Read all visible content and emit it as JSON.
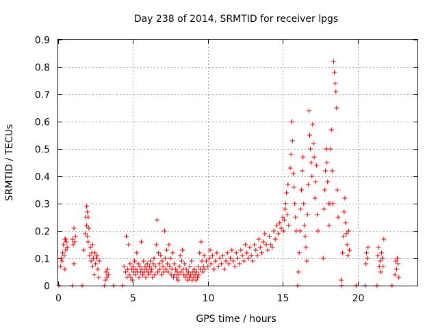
{
  "chart_data": {
    "type": "scatter",
    "title": "Day 238 of 2014, SRMTID for receiver lpgs",
    "xlabel": "GPS time / hours",
    "ylabel": "SRMTID / TECUs",
    "xlim": [
      0,
      24
    ],
    "ylim": [
      0,
      0.9
    ],
    "xticks": [
      0,
      5,
      10,
      15,
      20
    ],
    "yticks": [
      0,
      0.1,
      0.2,
      0.3,
      0.4,
      0.5,
      0.6,
      0.7,
      0.8,
      0.9
    ],
    "xtick_labels": [
      "0",
      "5",
      "10",
      "15",
      "20"
    ],
    "ytick_labels": [
      "0",
      "0.1",
      "0.2",
      "0.3",
      "0.4",
      "0.5",
      "0.6",
      "0.7",
      "0.8",
      "0.9"
    ],
    "grid": true,
    "marker": "plus",
    "color": "#e00000",
    "series": [
      {
        "name": "SRMTID",
        "points": [
          [
            0.05,
            0.0
          ],
          [
            0.15,
            0.07
          ],
          [
            0.2,
            0.1
          ],
          [
            0.25,
            0.09
          ],
          [
            0.3,
            0.12
          ],
          [
            0.35,
            0.15
          ],
          [
            0.4,
            0.11
          ],
          [
            0.45,
            0.17
          ],
          [
            0.5,
            0.13
          ],
          [
            0.55,
            0.16
          ],
          [
            0.6,
            0.14
          ],
          [
            0.45,
            0.06
          ],
          [
            0.5,
            0.17
          ],
          [
            0.95,
            0.0
          ],
          [
            0.95,
            0.17
          ],
          [
            1.0,
            0.15
          ],
          [
            1.05,
            0.21
          ],
          [
            1.1,
            0.16
          ],
          [
            1.15,
            0.18
          ],
          [
            1.05,
            0.08
          ],
          [
            1.6,
            0.0
          ],
          [
            1.7,
            0.13
          ],
          [
            1.8,
            0.19
          ],
          [
            1.85,
            0.25
          ],
          [
            1.9,
            0.29
          ],
          [
            1.9,
            0.22
          ],
          [
            1.95,
            0.18
          ],
          [
            2.0,
            0.16
          ],
          [
            2.05,
            0.21
          ],
          [
            2.1,
            0.11
          ],
          [
            2.15,
            0.14
          ],
          [
            2.2,
            0.09
          ],
          [
            2.25,
            0.12
          ],
          [
            2.3,
            0.07
          ],
          [
            2.35,
            0.1
          ],
          [
            2.4,
            0.04
          ],
          [
            2.45,
            0.12
          ],
          [
            2.5,
            0.08
          ],
          [
            2.55,
            0.1
          ],
          [
            2.6,
            0.11
          ],
          [
            2.65,
            0.06
          ],
          [
            2.7,
            0.03
          ],
          [
            2.75,
            0.09
          ],
          [
            1.95,
            0.27
          ],
          [
            2.0,
            0.25
          ],
          [
            2.3,
            0.15
          ],
          [
            3.1,
            0.0
          ],
          [
            3.15,
            0.02
          ],
          [
            3.2,
            0.05
          ],
          [
            3.25,
            0.03
          ],
          [
            3.3,
            0.06
          ],
          [
            3.35,
            0.04
          ],
          [
            3.7,
            0.0
          ],
          [
            4.3,
            0.0
          ],
          [
            4.4,
            0.07
          ],
          [
            4.5,
            0.05
          ],
          [
            4.55,
            0.18
          ],
          [
            4.6,
            0.03
          ],
          [
            4.65,
            0.06
          ],
          [
            4.7,
            0.15
          ],
          [
            4.75,
            0.04
          ],
          [
            4.8,
            0.08
          ],
          [
            4.85,
            0.03
          ],
          [
            4.9,
            0.06
          ],
          [
            4.95,
            0.02
          ],
          [
            5.0,
            0.07
          ],
          [
            5.05,
            0.05
          ],
          [
            5.1,
            0.09
          ],
          [
            5.15,
            0.04
          ],
          [
            5.2,
            0.06
          ],
          [
            5.25,
            0.12
          ],
          [
            5.3,
            0.05
          ],
          [
            5.35,
            0.08
          ],
          [
            5.4,
            0.03
          ],
          [
            5.45,
            0.07
          ],
          [
            5.5,
            0.05
          ],
          [
            5.55,
            0.16
          ],
          [
            5.6,
            0.06
          ],
          [
            5.65,
            0.04
          ],
          [
            5.7,
            0.09
          ],
          [
            5.75,
            0.05
          ],
          [
            5.8,
            0.07
          ],
          [
            5.85,
            0.03
          ],
          [
            5.9,
            0.06
          ],
          [
            5.95,
            0.08
          ],
          [
            6.0,
            0.05
          ],
          [
            6.05,
            0.04
          ],
          [
            6.1,
            0.07
          ],
          [
            6.15,
            0.09
          ],
          [
            6.2,
            0.05
          ],
          [
            6.25,
            0.06
          ],
          [
            6.3,
            0.03
          ],
          [
            6.35,
            0.08
          ],
          [
            6.4,
            0.1
          ],
          [
            6.45,
            0.04
          ],
          [
            6.5,
            0.07
          ],
          [
            6.55,
            0.15
          ],
          [
            6.6,
            0.24
          ],
          [
            6.65,
            0.05
          ],
          [
            6.7,
            0.12
          ],
          [
            6.75,
            0.08
          ],
          [
            6.8,
            0.06
          ],
          [
            6.85,
            0.11
          ],
          [
            6.9,
            0.04
          ],
          [
            6.95,
            0.09
          ],
          [
            7.0,
            0.07
          ],
          [
            7.05,
            0.05
          ],
          [
            7.1,
            0.2
          ],
          [
            7.15,
            0.1
          ],
          [
            7.2,
            0.06
          ],
          [
            7.25,
            0.13
          ],
          [
            7.3,
            0.08
          ],
          [
            7.35,
            0.05
          ],
          [
            7.4,
            0.15
          ],
          [
            7.45,
            0.07
          ],
          [
            7.5,
            0.1
          ],
          [
            7.55,
            0.04
          ],
          [
            7.6,
            0.06
          ],
          [
            7.65,
            0.12
          ],
          [
            7.7,
            0.03
          ],
          [
            7.75,
            0.08
          ],
          [
            7.8,
            0.04
          ],
          [
            7.85,
            0.06
          ],
          [
            7.9,
            0.03
          ],
          [
            7.95,
            0.05
          ],
          [
            8.0,
            0.02
          ],
          [
            8.05,
            0.04
          ],
          [
            8.1,
            0.07
          ],
          [
            8.15,
            0.11
          ],
          [
            8.2,
            0.05
          ],
          [
            8.25,
            0.09
          ],
          [
            8.3,
            0.13
          ],
          [
            8.35,
            0.06
          ],
          [
            8.4,
            0.04
          ],
          [
            8.45,
            0.08
          ],
          [
            8.5,
            0.03
          ],
          [
            8.55,
            0.06
          ],
          [
            8.6,
            0.04
          ],
          [
            8.65,
            0.02
          ],
          [
            8.7,
            0.05
          ],
          [
            8.75,
            0.03
          ],
          [
            8.8,
            0.07
          ],
          [
            8.85,
            0.04
          ],
          [
            8.9,
            0.09
          ],
          [
            8.95,
            0.02
          ],
          [
            9.0,
            0.05
          ],
          [
            9.05,
            0.03
          ],
          [
            9.1,
            0.06
          ],
          [
            9.15,
            0.04
          ],
          [
            9.2,
            0.02
          ],
          [
            9.25,
            0.05
          ],
          [
            9.3,
            0.03
          ],
          [
            9.35,
            0.07
          ],
          [
            9.4,
            0.04
          ],
          [
            9.45,
            0.12
          ],
          [
            9.5,
            0.06
          ],
          [
            9.55,
            0.16
          ],
          [
            9.6,
            0.09
          ],
          [
            9.65,
            0.05
          ],
          [
            9.7,
            0.07
          ],
          [
            9.75,
            0.11
          ],
          [
            9.8,
            0.06
          ],
          [
            9.9,
            0.09
          ],
          [
            10.0,
            0.07
          ],
          [
            10.1,
            0.1
          ],
          [
            10.15,
            0.13
          ],
          [
            10.2,
            0.08
          ],
          [
            10.3,
            0.11
          ],
          [
            10.4,
            0.06
          ],
          [
            10.5,
            0.09
          ],
          [
            10.6,
            0.12
          ],
          [
            10.7,
            0.07
          ],
          [
            10.8,
            0.1
          ],
          [
            10.9,
            0.08
          ],
          [
            11.0,
            0.11
          ],
          [
            11.1,
            0.06
          ],
          [
            11.2,
            0.09
          ],
          [
            11.3,
            0.12
          ],
          [
            11.4,
            0.08
          ],
          [
            11.5,
            0.1
          ],
          [
            11.6,
            0.13
          ],
          [
            11.7,
            0.09
          ],
          [
            11.8,
            0.07
          ],
          [
            11.9,
            0.12
          ],
          [
            12.0,
            0.1
          ],
          [
            12.1,
            0.08
          ],
          [
            12.2,
            0.13
          ],
          [
            12.3,
            0.11
          ],
          [
            12.4,
            0.09
          ],
          [
            12.5,
            0.15
          ],
          [
            12.6,
            0.12
          ],
          [
            12.7,
            0.1
          ],
          [
            12.8,
            0.14
          ],
          [
            12.9,
            0.11
          ],
          [
            13.0,
            0.09
          ],
          [
            13.1,
            0.15
          ],
          [
            13.2,
            0.13
          ],
          [
            13.3,
            0.11
          ],
          [
            13.4,
            0.17
          ],
          [
            13.5,
            0.14
          ],
          [
            13.6,
            0.12
          ],
          [
            13.7,
            0.16
          ],
          [
            13.8,
            0.19
          ],
          [
            13.9,
            0.15
          ],
          [
            14.0,
            0.13
          ],
          [
            14.1,
            0.18
          ],
          [
            14.2,
            0.15
          ],
          [
            14.3,
            0.14
          ],
          [
            14.4,
            0.2
          ],
          [
            14.5,
            0.17
          ],
          [
            14.6,
            0.22
          ],
          [
            14.7,
            0.19
          ],
          [
            14.8,
            0.23
          ],
          [
            14.9,
            0.21
          ],
          [
            15.0,
            0.25
          ],
          [
            15.05,
            0.2
          ],
          [
            15.1,
            0.24
          ],
          [
            15.15,
            0.28
          ],
          [
            15.2,
            0.3
          ],
          [
            15.25,
            0.34
          ],
          [
            15.3,
            0.26
          ],
          [
            15.35,
            0.37
          ],
          [
            15.4,
            0.22
          ],
          [
            15.5,
            0.43
          ],
          [
            15.55,
            0.48
          ],
          [
            15.6,
            0.6
          ],
          [
            15.65,
            0.53
          ],
          [
            15.7,
            0.41
          ],
          [
            15.75,
            0.36
          ],
          [
            15.8,
            0.3
          ],
          [
            15.85,
            0.25
          ],
          [
            15.9,
            0.2
          ],
          [
            16.0,
            0.0
          ],
          [
            16.05,
            0.05
          ],
          [
            16.1,
            0.12
          ],
          [
            16.15,
            0.2
          ],
          [
            16.2,
            0.28
          ],
          [
            16.25,
            0.35
          ],
          [
            16.3,
            0.42
          ],
          [
            16.35,
            0.47
          ],
          [
            16.4,
            0.3
          ],
          [
            16.45,
            0.22
          ],
          [
            16.5,
            0.18
          ],
          [
            16.55,
            0.14
          ],
          [
            16.6,
            0.09
          ],
          [
            16.65,
            0.26
          ],
          [
            16.7,
            0.37
          ],
          [
            16.75,
            0.64
          ],
          [
            16.8,
            0.55
          ],
          [
            16.85,
            0.5
          ],
          [
            16.9,
            0.45
          ],
          [
            16.95,
            0.4
          ],
          [
            17.0,
            0.59
          ],
          [
            17.05,
            0.52
          ],
          [
            17.1,
            0.47
          ],
          [
            17.15,
            0.32
          ],
          [
            17.2,
            0.38
          ],
          [
            17.25,
            0.44
          ],
          [
            17.3,
            0.26
          ],
          [
            17.35,
            0.2
          ],
          [
            17.7,
            0.1
          ],
          [
            17.75,
            0.28
          ],
          [
            17.8,
            0.35
          ],
          [
            17.85,
            0.42
          ],
          [
            17.9,
            0.5
          ],
          [
            17.95,
            0.45
          ],
          [
            18.0,
            0.38
          ],
          [
            18.05,
            0.3
          ],
          [
            18.1,
            0.22
          ],
          [
            18.15,
            0.3
          ],
          [
            18.2,
            0.5
          ],
          [
            18.25,
            0.57
          ],
          [
            18.3,
            0.42
          ],
          [
            18.35,
            0.3
          ],
          [
            18.4,
            0.82
          ],
          [
            18.45,
            0.78
          ],
          [
            18.5,
            0.74
          ],
          [
            18.55,
            0.71
          ],
          [
            18.6,
            0.65
          ],
          [
            18.65,
            0.35
          ],
          [
            18.7,
            0.25
          ],
          [
            18.9,
            0.02
          ],
          [
            18.95,
            0.0
          ],
          [
            19.0,
            0.12
          ],
          [
            19.05,
            0.18
          ],
          [
            19.1,
            0.27
          ],
          [
            19.15,
            0.32
          ],
          [
            19.2,
            0.23
          ],
          [
            19.25,
            0.19
          ],
          [
            19.3,
            0.15
          ],
          [
            19.35,
            0.11
          ],
          [
            19.4,
            0.2
          ],
          [
            19.45,
            0.13
          ],
          [
            19.9,
            0.0
          ],
          [
            20.5,
            0.0
          ],
          [
            20.55,
            0.08
          ],
          [
            20.6,
            0.12
          ],
          [
            20.65,
            0.1
          ],
          [
            20.7,
            0.14
          ],
          [
            21.3,
            0.0
          ],
          [
            21.35,
            0.11
          ],
          [
            21.4,
            0.14
          ],
          [
            21.45,
            0.07
          ],
          [
            21.5,
            0.09
          ],
          [
            21.55,
            0.05
          ],
          [
            21.6,
            0.12
          ],
          [
            21.65,
            0.1
          ],
          [
            21.7,
            0.07
          ],
          [
            21.75,
            0.17
          ],
          [
            22.3,
            0.0
          ],
          [
            22.5,
            0.04
          ],
          [
            22.55,
            0.09
          ],
          [
            22.6,
            0.06
          ],
          [
            22.65,
            0.1
          ],
          [
            22.7,
            0.08
          ],
          [
            22.75,
            0.03
          ]
        ]
      }
    ]
  }
}
